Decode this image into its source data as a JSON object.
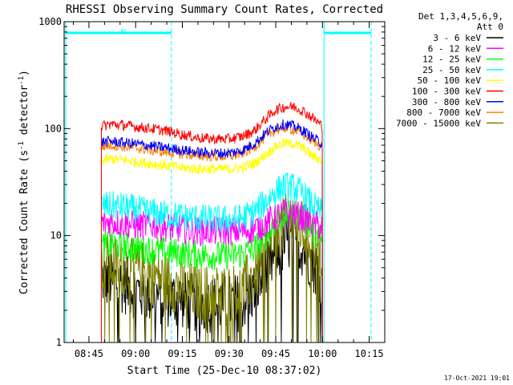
{
  "chart_data": {
    "type": "line",
    "title": "RHESSI Observing Summary Count Rates, Corrected",
    "xlabel": "Start Time (25-Dec-10 08:37:02)",
    "ylabel": "Corrected Count Rate (s",
    "ylabel_sup": "-1",
    "ylabel_mid": " detector",
    "ylabel_sup2": "-1",
    "ylabel_end": ")",
    "y_scale": "log",
    "ylim": [
      1,
      1000
    ],
    "xlim": [
      "08:37:02",
      "10:20:00"
    ],
    "x_ticks": [
      "08:45",
      "09:00",
      "09:15",
      "09:30",
      "09:45",
      "10:00",
      "10:15"
    ],
    "x_tick_minutes": [
      525,
      540,
      555,
      570,
      585,
      600,
      615
    ],
    "y_ticks": [
      "1",
      "10",
      "100",
      "1000"
    ],
    "y_tick_values": [
      1,
      10,
      100,
      1000
    ],
    "legend_header": [
      "Det 1,3,4,5,6,9,",
      "Att 0"
    ],
    "legend_position": "right",
    "footer_date": "17-Oct-2021 19:01",
    "night_marker": "N",
    "data_start_minute": 551.5,
    "data_end_minute": 600.5,
    "x_minutes": [
      529,
      532,
      536,
      540,
      545,
      550,
      555,
      560,
      565,
      570,
      574,
      578,
      582,
      585,
      588,
      591,
      594,
      597,
      600
    ],
    "series": [
      {
        "name": "3 - 6 keV",
        "color": "#000000",
        "values": [
          4.0,
          3.8,
          3.5,
          3.1,
          2.8,
          2.6,
          2.5,
          2.3,
          2.3,
          2.3,
          2.4,
          3.0,
          4.5,
          6.5,
          8.5,
          9.0,
          7.5,
          5.5,
          4.0
        ]
      },
      {
        "name": "6 - 12 keV",
        "color": "#ff00ff",
        "values": [
          13.0,
          13.5,
          13.0,
          12.5,
          12.5,
          12.0,
          11.5,
          11.0,
          11.0,
          11.0,
          11.0,
          11.5,
          13.0,
          15.0,
          16.5,
          16.0,
          14.5,
          13.0,
          12.0
        ]
      },
      {
        "name": "12 - 25 keV",
        "color": "#00ff00",
        "values": [
          8.0,
          8.2,
          8.0,
          7.6,
          7.3,
          7.1,
          6.8,
          6.6,
          6.5,
          6.5,
          6.7,
          7.5,
          10.0,
          13.5,
          16.0,
          16.5,
          14.0,
          11.0,
          8.5
        ]
      },
      {
        "name": "25 - 50 keV",
        "color": "#00ffff",
        "values": [
          19.0,
          19.0,
          18.5,
          17.5,
          16.5,
          15.5,
          15.0,
          14.5,
          14.0,
          14.0,
          14.5,
          16.5,
          21.0,
          26.0,
          29.0,
          28.0,
          24.0,
          19.0,
          16.0
        ]
      },
      {
        "name": "50 - 100 keV",
        "color": "#ffff00",
        "values": [
          50,
          52,
          51,
          49,
          47,
          45,
          43,
          42,
          42,
          42,
          43,
          47,
          58,
          68,
          73,
          72,
          65,
          55,
          50
        ]
      },
      {
        "name": "100 - 300 keV",
        "color": "#ff0000",
        "values": [
          105,
          110,
          108,
          104,
          100,
          95,
          88,
          82,
          80,
          80,
          84,
          95,
          125,
          150,
          160,
          160,
          145,
          125,
          105
        ]
      },
      {
        "name": "300 - 800 keV",
        "color": "#0000ff",
        "values": [
          75,
          76,
          74,
          72,
          69,
          66,
          63,
          60,
          59,
          59,
          62,
          72,
          92,
          105,
          110,
          105,
          95,
          82,
          72
        ]
      },
      {
        "name": "800 - 7000 keV",
        "color": "#ff8000",
        "values": [
          68,
          70,
          68,
          66,
          63,
          60,
          58,
          56,
          55,
          55,
          58,
          67,
          85,
          97,
          102,
          97,
          88,
          76,
          67
        ]
      },
      {
        "name": "7000 - 15000 keV",
        "color": "#808000",
        "values": [
          5.5,
          5.4,
          5.2,
          5.0,
          4.5,
          3.7,
          3.2,
          2.9,
          2.9,
          2.9,
          3.1,
          4.2,
          7.0,
          10.5,
          13.0,
          13.5,
          11.0,
          8.5,
          6.5
        ]
      }
    ]
  }
}
